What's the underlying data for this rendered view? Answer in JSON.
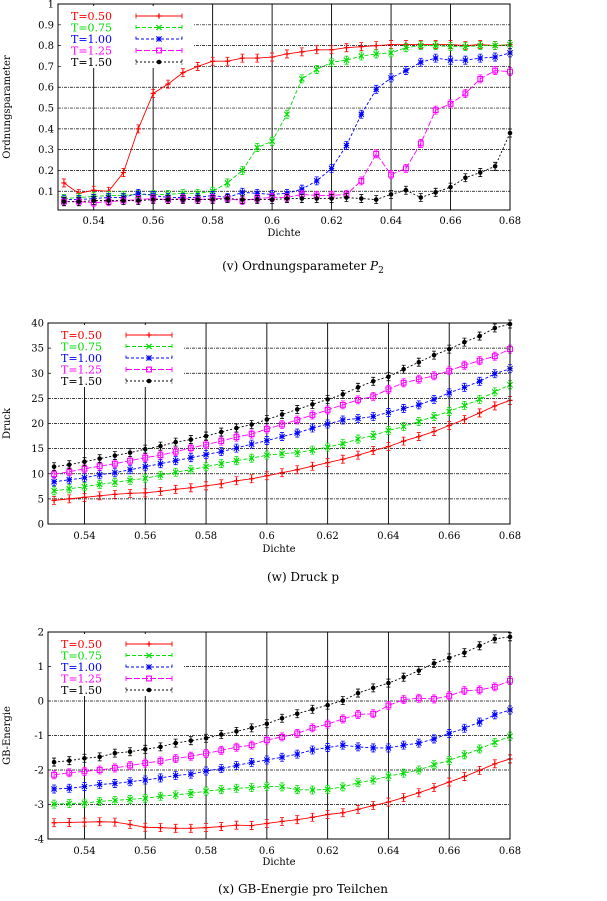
{
  "series_colors": [
    "#ff0000",
    "#00dd00",
    "#0000ff",
    "#ff00ff",
    "#000000"
  ],
  "series_markers": [
    "plus",
    "cross",
    "star",
    "square",
    "circle"
  ],
  "chart_data": [
    {
      "type": "line",
      "title": "",
      "caption": "(v) Ordnungsparameter ",
      "caption_math": "P",
      "caption_sub": "2",
      "xlabel": "Dichte",
      "ylabel": "Ordnungsparameter",
      "xlim": [
        0.528,
        0.68
      ],
      "ylim": [
        0.01,
        1
      ],
      "xticks": [
        "0.54",
        "0.56",
        "0.58",
        "0.6",
        "0.62",
        "0.64",
        "0.66",
        "0.68"
      ],
      "yticks": [
        "0.1",
        "0.2",
        "0.3",
        "0.4",
        "0.5",
        "0.6",
        "0.7",
        "0.8",
        "0.9",
        "1"
      ],
      "grid": true,
      "legend_position": "top-left",
      "x": [
        0.53,
        0.535,
        0.54,
        0.545,
        0.55,
        0.555,
        0.56,
        0.565,
        0.57,
        0.575,
        0.58,
        0.585,
        0.59,
        0.595,
        0.6,
        0.605,
        0.61,
        0.615,
        0.62,
        0.625,
        0.63,
        0.635,
        0.64,
        0.645,
        0.65,
        0.655,
        0.66,
        0.665,
        0.67,
        0.675,
        0.68
      ],
      "series": [
        {
          "name": "T=0.50",
          "values": [
            0.14,
            0.09,
            0.105,
            0.1,
            0.19,
            0.4,
            0.57,
            0.615,
            0.67,
            0.7,
            0.725,
            0.725,
            0.74,
            0.74,
            0.745,
            0.76,
            0.77,
            0.78,
            0.78,
            0.79,
            0.795,
            0.8,
            0.805,
            0.805,
            0.805,
            0.805,
            0.805,
            0.8,
            0.805,
            0.8,
            0.805
          ]
        },
        {
          "name": "T=0.75",
          "values": [
            0.065,
            0.07,
            0.075,
            0.08,
            0.08,
            0.085,
            0.085,
            0.085,
            0.09,
            0.09,
            0.1,
            0.14,
            0.2,
            0.31,
            0.34,
            0.47,
            0.64,
            0.685,
            0.72,
            0.73,
            0.75,
            0.76,
            0.765,
            0.79,
            0.8,
            0.8,
            0.795,
            0.795,
            0.8,
            0.8,
            0.805
          ]
        },
        {
          "name": "T=1.00",
          "values": [
            0.06,
            0.06,
            0.065,
            0.07,
            0.07,
            0.09,
            0.08,
            0.07,
            0.07,
            0.07,
            0.08,
            0.07,
            0.095,
            0.09,
            0.085,
            0.09,
            0.11,
            0.15,
            0.21,
            0.32,
            0.47,
            0.59,
            0.645,
            0.68,
            0.72,
            0.74,
            0.73,
            0.73,
            0.74,
            0.745,
            0.765
          ]
        },
        {
          "name": "T=1.25",
          "values": [
            0.05,
            0.05,
            0.045,
            0.05,
            0.055,
            0.06,
            0.065,
            0.06,
            0.065,
            0.06,
            0.065,
            0.065,
            0.055,
            0.065,
            0.07,
            0.07,
            0.085,
            0.08,
            0.08,
            0.085,
            0.15,
            0.28,
            0.18,
            0.21,
            0.33,
            0.49,
            0.52,
            0.57,
            0.64,
            0.68,
            0.675
          ]
        },
        {
          "name": "T=1.50",
          "values": [
            0.05,
            0.05,
            0.055,
            0.055,
            0.055,
            0.055,
            0.06,
            0.06,
            0.06,
            0.06,
            0.06,
            0.065,
            0.06,
            0.06,
            0.06,
            0.065,
            0.065,
            0.065,
            0.065,
            0.07,
            0.065,
            0.06,
            0.085,
            0.105,
            0.07,
            0.095,
            0.12,
            0.165,
            0.19,
            0.22,
            0.38
          ]
        }
      ]
    },
    {
      "type": "line",
      "title": "",
      "caption": "(w) Druck p",
      "xlabel": "Dichte",
      "ylabel": "Druck",
      "xlim": [
        0.528,
        0.68
      ],
      "ylim": [
        0,
        40
      ],
      "xticks": [
        "0.54",
        "0.56",
        "0.58",
        "0.6",
        "0.62",
        "0.64",
        "0.66",
        "0.68"
      ],
      "yticks": [
        "0",
        "5",
        "10",
        "15",
        "20",
        "25",
        "30",
        "35",
        "40"
      ],
      "grid": true,
      "legend_position": "top-left",
      "x": [
        0.53,
        0.535,
        0.54,
        0.545,
        0.55,
        0.555,
        0.56,
        0.565,
        0.57,
        0.575,
        0.58,
        0.585,
        0.59,
        0.595,
        0.6,
        0.605,
        0.61,
        0.615,
        0.62,
        0.625,
        0.63,
        0.635,
        0.64,
        0.645,
        0.65,
        0.655,
        0.66,
        0.665,
        0.67,
        0.675,
        0.68
      ],
      "series": [
        {
          "name": "T=0.50",
          "values": [
            4.7,
            5.0,
            5.3,
            5.6,
            5.9,
            6.1,
            6.2,
            6.5,
            6.9,
            7.2,
            7.6,
            8.0,
            8.6,
            9.0,
            9.6,
            10.2,
            10.8,
            11.5,
            12.2,
            12.9,
            13.7,
            14.6,
            15.4,
            16.5,
            17.4,
            18.4,
            19.6,
            20.8,
            22.1,
            23.5,
            24.6
          ]
        },
        {
          "name": "T=0.75",
          "values": [
            6.6,
            7.0,
            7.4,
            7.9,
            8.3,
            8.7,
            9.1,
            9.7,
            10.3,
            10.8,
            11.4,
            12.0,
            12.6,
            13.1,
            13.7,
            14.0,
            14.2,
            14.7,
            15.3,
            16.0,
            16.9,
            17.6,
            18.6,
            19.4,
            20.4,
            21.4,
            22.4,
            23.6,
            24.8,
            26.3,
            27.7
          ]
        },
        {
          "name": "T=1.00",
          "values": [
            8.4,
            8.8,
            9.2,
            9.8,
            10.2,
            10.8,
            11.4,
            12.0,
            12.6,
            13.2,
            13.8,
            14.4,
            15.1,
            15.9,
            16.6,
            17.4,
            18.1,
            19.1,
            19.9,
            20.7,
            21.0,
            21.4,
            22.2,
            23.0,
            23.7,
            24.8,
            26.1,
            27.2,
            28.4,
            29.9,
            30.9
          ]
        },
        {
          "name": "T=1.25",
          "values": [
            9.9,
            10.4,
            11.0,
            11.5,
            12.0,
            12.6,
            13.2,
            13.7,
            14.4,
            15.1,
            15.8,
            16.5,
            17.3,
            17.9,
            18.9,
            19.8,
            20.7,
            21.7,
            22.7,
            23.7,
            24.7,
            25.4,
            26.8,
            28.1,
            28.8,
            29.5,
            30.5,
            31.6,
            32.5,
            33.4,
            34.8
          ]
        },
        {
          "name": "T=1.50",
          "values": [
            11.4,
            11.8,
            12.4,
            13.0,
            13.6,
            14.2,
            14.9,
            15.5,
            16.3,
            16.8,
            17.5,
            18.3,
            19.1,
            19.8,
            20.8,
            21.8,
            22.8,
            23.8,
            24.8,
            25.8,
            27.2,
            28.4,
            29.3,
            30.8,
            32.2,
            33.6,
            34.8,
            36.2,
            37.4,
            39.0,
            39.8
          ]
        }
      ]
    },
    {
      "type": "line",
      "title": "",
      "caption": "(x) GB-Energie pro Teilchen",
      "xlabel": "Dichte",
      "ylabel": "GB-Energie",
      "xlim": [
        0.528,
        0.68
      ],
      "ylim": [
        -4,
        2
      ],
      "xticks": [
        "0.54",
        "0.56",
        "0.58",
        "0.6",
        "0.62",
        "0.64",
        "0.66",
        "0.68"
      ],
      "yticks": [
        "-4",
        "-3",
        "-2",
        "-1",
        "0",
        "1",
        "2"
      ],
      "grid": true,
      "legend_position": "top-left",
      "x": [
        0.53,
        0.535,
        0.54,
        0.545,
        0.55,
        0.555,
        0.56,
        0.565,
        0.57,
        0.575,
        0.58,
        0.585,
        0.59,
        0.595,
        0.6,
        0.605,
        0.61,
        0.615,
        0.62,
        0.625,
        0.63,
        0.635,
        0.64,
        0.645,
        0.65,
        0.655,
        0.66,
        0.665,
        0.67,
        0.675,
        0.68
      ],
      "series": [
        {
          "name": "T=0.50",
          "values": [
            -3.53,
            -3.52,
            -3.51,
            -3.5,
            -3.51,
            -3.58,
            -3.66,
            -3.67,
            -3.69,
            -3.69,
            -3.67,
            -3.64,
            -3.6,
            -3.61,
            -3.55,
            -3.49,
            -3.44,
            -3.37,
            -3.29,
            -3.24,
            -3.14,
            -3.03,
            -2.93,
            -2.8,
            -2.66,
            -2.51,
            -2.35,
            -2.19,
            -2.01,
            -1.82,
            -1.68
          ]
        },
        {
          "name": "T=0.75",
          "values": [
            -2.99,
            -2.97,
            -2.96,
            -2.91,
            -2.88,
            -2.85,
            -2.82,
            -2.76,
            -2.72,
            -2.68,
            -2.61,
            -2.57,
            -2.53,
            -2.51,
            -2.47,
            -2.49,
            -2.57,
            -2.58,
            -2.56,
            -2.49,
            -2.37,
            -2.29,
            -2.18,
            -2.09,
            -2.0,
            -1.85,
            -1.72,
            -1.56,
            -1.39,
            -1.2,
            -1.02
          ]
        },
        {
          "name": "T=1.00",
          "values": [
            -2.55,
            -2.53,
            -2.48,
            -2.42,
            -2.39,
            -2.34,
            -2.29,
            -2.23,
            -2.16,
            -2.12,
            -2.03,
            -1.96,
            -1.87,
            -1.78,
            -1.71,
            -1.63,
            -1.54,
            -1.42,
            -1.35,
            -1.28,
            -1.33,
            -1.36,
            -1.36,
            -1.28,
            -1.22,
            -1.1,
            -0.94,
            -0.79,
            -0.61,
            -0.4,
            -0.26
          ]
        },
        {
          "name": "T=1.25",
          "values": [
            -2.14,
            -2.08,
            -2.04,
            -2.0,
            -1.94,
            -1.87,
            -1.8,
            -1.74,
            -1.67,
            -1.6,
            -1.52,
            -1.43,
            -1.34,
            -1.28,
            -1.13,
            -1.04,
            -0.94,
            -0.78,
            -0.67,
            -0.52,
            -0.39,
            -0.37,
            -0.13,
            0.04,
            0.08,
            0.06,
            0.15,
            0.3,
            0.32,
            0.41,
            0.59
          ]
        },
        {
          "name": "T=1.50",
          "values": [
            -1.77,
            -1.73,
            -1.66,
            -1.62,
            -1.51,
            -1.47,
            -1.4,
            -1.33,
            -1.22,
            -1.15,
            -1.08,
            -0.97,
            -0.88,
            -0.78,
            -0.66,
            -0.5,
            -0.37,
            -0.24,
            -0.12,
            0.01,
            0.23,
            0.38,
            0.52,
            0.69,
            0.88,
            1.09,
            1.25,
            1.4,
            1.6,
            1.8,
            1.86
          ]
        }
      ]
    }
  ]
}
